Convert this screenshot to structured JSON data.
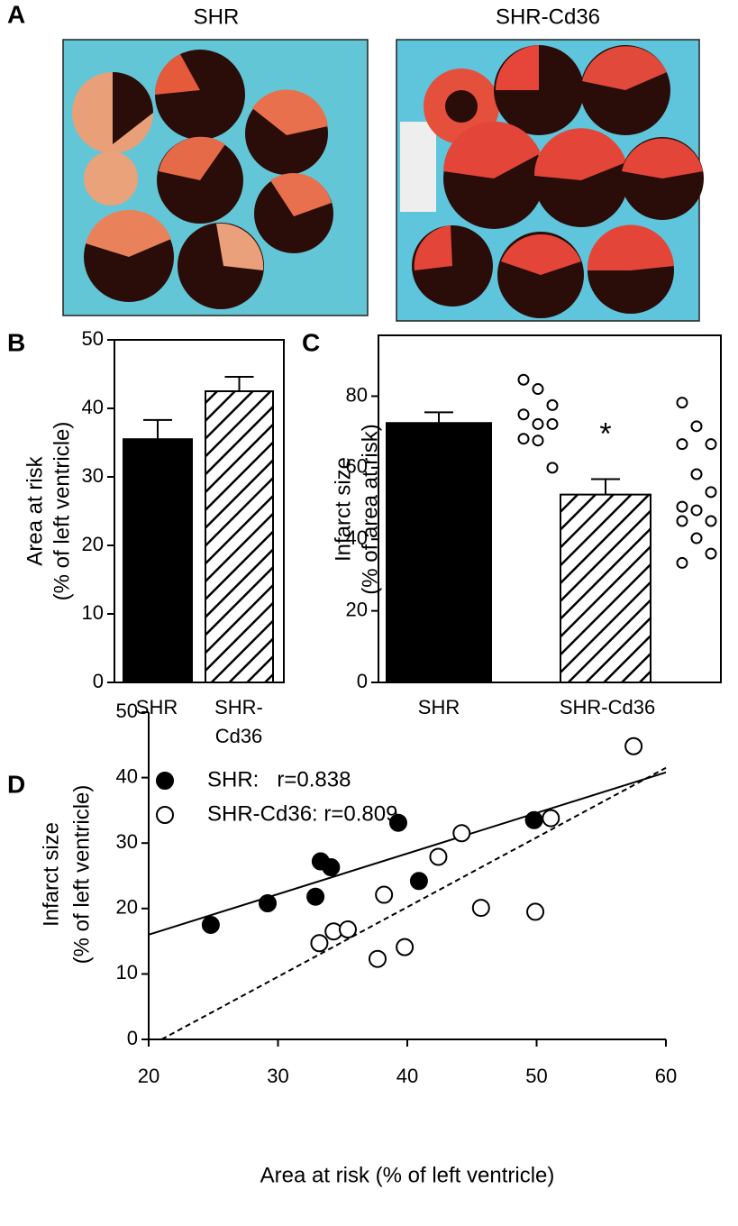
{
  "panel_a": {
    "label": "A",
    "titles": [
      "SHR",
      "SHR-Cd36"
    ]
  },
  "chart_data": [
    {
      "panel": "B",
      "type": "bar",
      "ylabel": [
        "Area at risk",
        "(% of left ventricle)"
      ],
      "categories": [
        "SHR",
        "SHR-Cd36"
      ],
      "values": [
        35.5,
        42.5
      ],
      "errors": [
        2.8,
        2.1
      ],
      "patterns": [
        "solid",
        "hatch"
      ],
      "color": "#000000",
      "ylim": [
        0,
        50
      ],
      "yticks": [
        0,
        10,
        20,
        30,
        40,
        50
      ]
    },
    {
      "panel": "C",
      "type": "bar",
      "ylabel": [
        "Infarct size",
        "(% of area at risk)"
      ],
      "categories": [
        "SHR",
        "SHR-Cd36"
      ],
      "values": [
        72.5,
        52.5
      ],
      "errors": [
        3.0,
        4.3
      ],
      "points": [
        [
          84.6,
          82.0,
          77.5,
          74.9,
          72.2,
          72.2,
          68.1,
          67.6,
          60.0
        ],
        [
          78.2,
          71.6,
          66.6,
          66.6,
          58.2,
          53.2,
          49.1,
          48.1,
          45.1,
          45.1,
          40.3,
          36.0,
          33.4
        ]
      ],
      "annotation": "*",
      "patterns": [
        "solid",
        "hatch"
      ],
      "color": "#000000",
      "ylim": [
        0,
        97
      ],
      "yticks": [
        0,
        20,
        40,
        60,
        80
      ]
    },
    {
      "panel": "D",
      "type": "scatter",
      "xlabel": "Area at risk (% of left ventricle)",
      "ylabel": [
        "Infarct size",
        "(% of left ventricle)"
      ],
      "series": [
        {
          "name": "SHR:   r=0.838",
          "color": "#000000",
          "fill": "#000000",
          "x": [
            24.8,
            29.2,
            32.9,
            33.3,
            34.1,
            39.3,
            40.9,
            49.8
          ],
          "values": [
            17.5,
            20.8,
            21.8,
            27.2,
            26.3,
            33.1,
            24.2,
            33.5
          ]
        },
        {
          "name": "SHR-Cd36: r=0.809",
          "color": "#000000",
          "fill": "#ffffff",
          "x": [
            33.2,
            34.3,
            35.4,
            37.7,
            38.2,
            39.8,
            42.4,
            44.2,
            45.7,
            49.9,
            51.1,
            57.5
          ],
          "values": [
            14.7,
            16.5,
            16.8,
            12.3,
            22.1,
            14.1,
            27.9,
            31.5,
            20.1,
            19.5,
            33.8,
            44.8
          ]
        }
      ],
      "lines": [
        {
          "style": "solid",
          "x": [
            20,
            60
          ],
          "y": [
            16,
            40.8
          ]
        },
        {
          "style": "dashed",
          "x": [
            21,
            60
          ],
          "y": [
            0,
            41.5
          ]
        }
      ],
      "xlim": [
        20,
        60
      ],
      "xticks": [
        20,
        30,
        40,
        50,
        60
      ],
      "ylim": [
        0,
        50
      ],
      "yticks": [
        0,
        10,
        20,
        30,
        40,
        50
      ]
    }
  ]
}
